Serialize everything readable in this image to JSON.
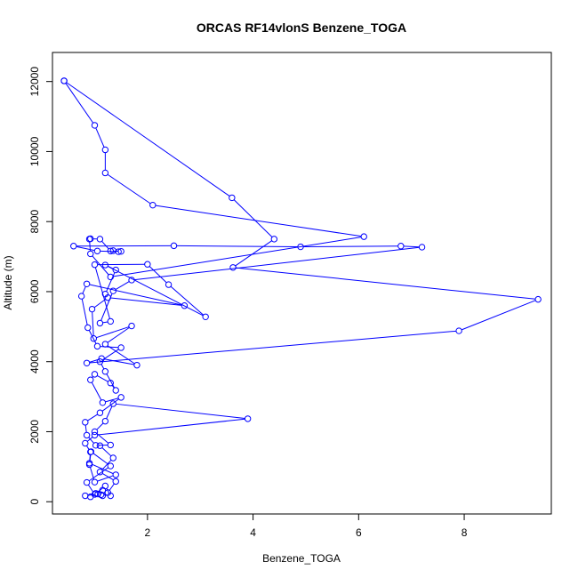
{
  "chart_data": {
    "type": "line",
    "title": "ORCAS RF14vlonS Benzene_TOGA",
    "xlabel": "Benzene_TOGA",
    "ylabel": "Altitude (m)",
    "xlim": [
      0.2,
      9.65
    ],
    "ylim": [
      -350,
      12830
    ],
    "xticks": [
      2,
      4,
      6,
      8
    ],
    "yticks": [
      0,
      2000,
      4000,
      6000,
      8000,
      10000,
      12000
    ],
    "grid": false,
    "legend": "none",
    "series_color": "#0000ff",
    "series": [
      {
        "points": [
          [
            0.42,
            12020
          ],
          [
            3.6,
            8680
          ],
          [
            4.4,
            7500
          ],
          [
            3.62,
            6690
          ],
          [
            9.4,
            5780
          ],
          [
            7.9,
            4880
          ],
          [
            0.85,
            3960
          ],
          [
            1.13,
            4090
          ],
          [
            1.8,
            3900
          ],
          [
            1.2,
            4500
          ],
          [
            1.7,
            5020
          ],
          [
            0.98,
            4660
          ],
          [
            0.95,
            5500
          ],
          [
            1.25,
            5830
          ],
          [
            2.7,
            5600
          ],
          [
            0.85,
            6220
          ],
          [
            0.75,
            5870
          ],
          [
            0.87,
            4970
          ],
          [
            1.05,
            4440
          ],
          [
            1.5,
            4400
          ],
          [
            1.1,
            4000
          ],
          [
            1.2,
            3720
          ],
          [
            1.4,
            3180
          ],
          [
            1.3,
            3390
          ],
          [
            1.0,
            3640
          ],
          [
            0.92,
            3480
          ],
          [
            1.15,
            2830
          ],
          [
            1.5,
            2980
          ],
          [
            1.1,
            2540
          ],
          [
            0.82,
            2270
          ],
          [
            0.85,
            1900
          ],
          [
            1.02,
            1610
          ],
          [
            1.3,
            1620
          ],
          [
            1.0,
            2000
          ],
          [
            1.2,
            2300
          ],
          [
            1.35,
            2800
          ],
          [
            3.9,
            2370
          ],
          [
            1.0,
            1900
          ],
          [
            0.82,
            1670
          ],
          [
            0.92,
            1420
          ],
          [
            0.9,
            1100
          ],
          [
            1.4,
            770
          ],
          [
            1.0,
            560
          ],
          [
            0.9,
            1060
          ],
          [
            0.93,
            1430
          ],
          [
            1.3,
            1020
          ],
          [
            0.85,
            550
          ],
          [
            1.0,
            210
          ],
          [
            1.2,
            450
          ],
          [
            1.3,
            170
          ],
          [
            1.12,
            200
          ],
          [
            1.15,
            330
          ],
          [
            1.02,
            240
          ],
          [
            0.92,
            140
          ],
          [
            0.82,
            170
          ],
          [
            1.06,
            220
          ],
          [
            1.15,
            170
          ],
          [
            1.25,
            260
          ],
          [
            1.4,
            580
          ],
          [
            1.1,
            850
          ],
          [
            1.35,
            1250
          ],
          [
            1.1,
            1600
          ]
        ]
      },
      {
        "points": [
          [
            0.42,
            12020
          ],
          [
            1.0,
            10750
          ],
          [
            1.2,
            10050
          ],
          [
            1.2,
            9390
          ],
          [
            2.1,
            8470
          ],
          [
            6.1,
            7570
          ],
          [
            1.3,
            6420
          ],
          [
            0.92,
            7080
          ],
          [
            0.9,
            7500
          ],
          [
            0.92,
            7510
          ],
          [
            1.1,
            7500
          ],
          [
            1.3,
            7160
          ],
          [
            1.5,
            7150
          ],
          [
            1.35,
            7170
          ],
          [
            1.45,
            7140
          ],
          [
            1.05,
            7160
          ],
          [
            0.6,
            7300
          ],
          [
            2.5,
            7310
          ],
          [
            4.9,
            7280
          ],
          [
            6.8,
            7300
          ],
          [
            7.2,
            7270
          ],
          [
            1.7,
            6330
          ],
          [
            1.35,
            6020
          ],
          [
            1.1,
            5100
          ],
          [
            1.3,
            5150
          ],
          [
            1.0,
            6770
          ],
          [
            2.0,
            6780
          ],
          [
            2.4,
            6200
          ],
          [
            3.1,
            5280
          ],
          [
            1.2,
            6760
          ],
          [
            1.4,
            6620
          ],
          [
            1.2,
            5930
          ]
        ]
      }
    ]
  }
}
